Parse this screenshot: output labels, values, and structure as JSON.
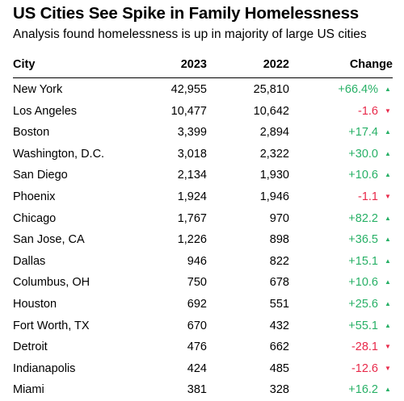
{
  "title": "US Cities See Spike in Family Homelessness",
  "subtitle": "Analysis found homelessness is up in majority of large US cities",
  "colors": {
    "increase": "#27b066",
    "decrease": "#e8294a"
  },
  "icons": {
    "increase": "triangle-up-icon",
    "decrease": "triangle-down-icon"
  },
  "arrows": {
    "up": "▲",
    "down": "▼"
  },
  "chart_data": {
    "type": "table",
    "title": "US Cities See Spike in Family Homelessness",
    "subtitle": "Analysis found homelessness is up in majority of large US cities",
    "columns": [
      "City",
      "2023",
      "2022",
      "Change"
    ],
    "rows": [
      {
        "city": "New York",
        "y2023": "42,955",
        "y2022": "25,810",
        "change": "+66.4%",
        "direction": "up"
      },
      {
        "city": "Los Angeles",
        "y2023": "10,477",
        "y2022": "10,642",
        "change": "-1.6",
        "direction": "down"
      },
      {
        "city": "Boston",
        "y2023": "3,399",
        "y2022": "2,894",
        "change": "+17.4",
        "direction": "up"
      },
      {
        "city": "Washington, D.C.",
        "y2023": "3,018",
        "y2022": "2,322",
        "change": "+30.0",
        "direction": "up"
      },
      {
        "city": "San Diego",
        "y2023": "2,134",
        "y2022": "1,930",
        "change": "+10.6",
        "direction": "up"
      },
      {
        "city": "Phoenix",
        "y2023": "1,924",
        "y2022": "1,946",
        "change": "-1.1",
        "direction": "down"
      },
      {
        "city": "Chicago",
        "y2023": "1,767",
        "y2022": "970",
        "change": "+82.2",
        "direction": "up"
      },
      {
        "city": "San Jose, CA",
        "y2023": "1,226",
        "y2022": "898",
        "change": "+36.5",
        "direction": "up"
      },
      {
        "city": "Dallas",
        "y2023": "946",
        "y2022": "822",
        "change": "+15.1",
        "direction": "up"
      },
      {
        "city": "Columbus, OH",
        "y2023": "750",
        "y2022": "678",
        "change": "+10.6",
        "direction": "up"
      },
      {
        "city": "Houston",
        "y2023": "692",
        "y2022": "551",
        "change": "+25.6",
        "direction": "up"
      },
      {
        "city": "Fort Worth, TX",
        "y2023": "670",
        "y2022": "432",
        "change": "+55.1",
        "direction": "up"
      },
      {
        "city": "Detroit",
        "y2023": "476",
        "y2022": "662",
        "change": "-28.1",
        "direction": "down"
      },
      {
        "city": "Indianapolis",
        "y2023": "424",
        "y2022": "485",
        "change": "-12.6",
        "direction": "down"
      },
      {
        "city": "Miami",
        "y2023": "381",
        "y2022": "328",
        "change": "+16.2",
        "direction": "up"
      }
    ]
  }
}
